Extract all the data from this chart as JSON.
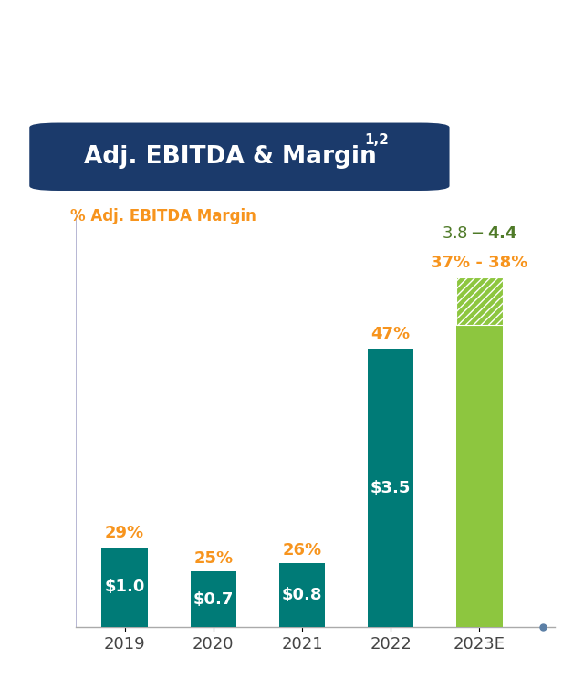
{
  "categories": [
    "2019",
    "2020",
    "2021",
    "2022",
    "2023E"
  ],
  "bar_values": [
    1.0,
    0.7,
    0.8,
    3.5,
    3.8
  ],
  "bar_extra": [
    0.0,
    0.0,
    0.0,
    0.0,
    0.6
  ],
  "margins": [
    "29%",
    "25%",
    "26%",
    "47%",
    "37% - 38%"
  ],
  "bar_labels_inside": [
    "$1.0",
    "$0.7",
    "$0.8",
    "$3.5",
    ""
  ],
  "bar_label_2023E_inside": "$3.8 - $4.4",
  "bar_label_2023E_above": "$3.8 - $4.4",
  "margin_color": "#F7941D",
  "title": "Adj. EBITDA & Margin",
  "title_superscript": "1,2",
  "title_bg_color": "#1B3A6B",
  "title_text_color": "#FFFFFF",
  "subtitle": "% Adj. EBITDA Margin",
  "subtitle_color": "#F7941D",
  "ylim": [
    0,
    5.2
  ],
  "bg_color": "#FFFFFF",
  "teal_color": "#007B77",
  "green_color": "#8DC63F",
  "green_label_color": "#4F7A28",
  "axis_line_color": "#B0BEC5",
  "dot_color": "#5B7FA6",
  "xtick_color": "#444444"
}
